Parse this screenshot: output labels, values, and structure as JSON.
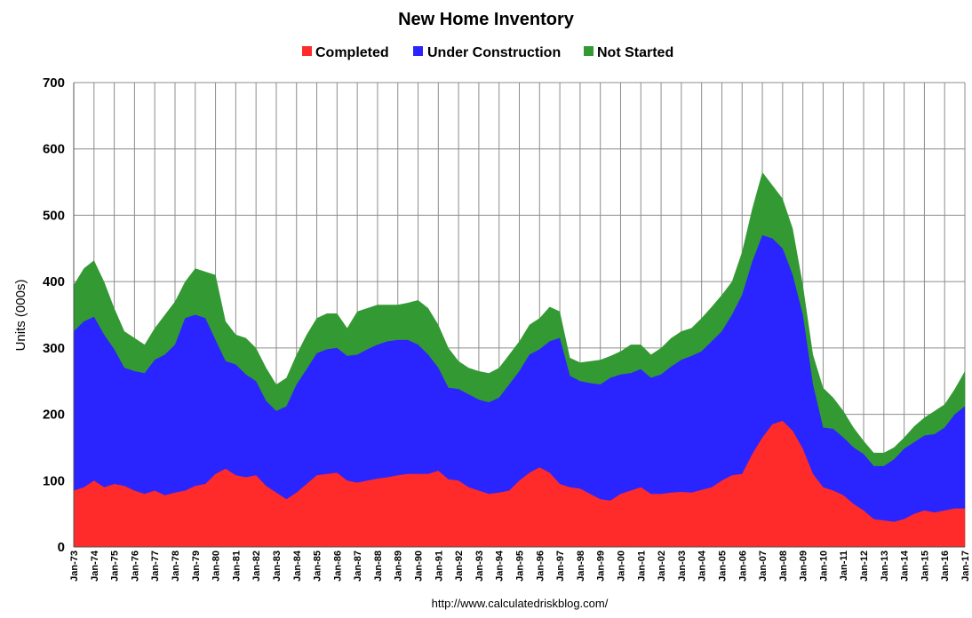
{
  "colors": {
    "completed": "#ff2a2a",
    "under_construction": "#2a24ff",
    "not_started": "#339933",
    "grid": "#8c8c8c",
    "background": "#ffffff"
  },
  "footer": {
    "source": "http://www.calculatedriskblog.com/"
  },
  "chart_data": {
    "type": "area",
    "stacked": true,
    "title": "New Home Inventory",
    "xlabel": "",
    "ylabel": "Units (000s)",
    "ylim": [
      0,
      700
    ],
    "yticks": [
      0,
      100,
      200,
      300,
      400,
      500,
      600,
      700
    ],
    "grid": true,
    "legend_position": "top-center",
    "x_tick_labels": [
      "Jan-73",
      "Jan-74",
      "Jan-75",
      "Jan-76",
      "Jan-77",
      "Jan-78",
      "Jan-79",
      "Jan-80",
      "Jan-81",
      "Jan-82",
      "Jan-83",
      "Jan-84",
      "Jan-85",
      "Jan-86",
      "Jan-87",
      "Jan-88",
      "Jan-89",
      "Jan-90",
      "Jan-91",
      "Jan-92",
      "Jan-93",
      "Jan-94",
      "Jan-95",
      "Jan-96",
      "Jan-97",
      "Jan-98",
      "Jan-99",
      "Jan-00",
      "Jan-01",
      "Jan-02",
      "Jan-03",
      "Jan-04",
      "Jan-05",
      "Jan-06",
      "Jan-07",
      "Jan-08",
      "Jan-09",
      "Jan-10",
      "Jan-11",
      "Jan-12",
      "Jan-13",
      "Jan-14",
      "Jan-15",
      "Jan-16",
      "Jan-17"
    ],
    "x": [
      "Jan-73",
      "Jul-73",
      "Jan-74",
      "Jul-74",
      "Jan-75",
      "Jul-75",
      "Jan-76",
      "Jul-76",
      "Jan-77",
      "Jul-77",
      "Jan-78",
      "Jul-78",
      "Jan-79",
      "Jul-79",
      "Jan-80",
      "Jul-80",
      "Jan-81",
      "Jul-81",
      "Jan-82",
      "Jul-82",
      "Jan-83",
      "Jul-83",
      "Jan-84",
      "Jul-84",
      "Jan-85",
      "Jul-85",
      "Jan-86",
      "Jul-86",
      "Jan-87",
      "Jul-87",
      "Jan-88",
      "Jul-88",
      "Jan-89",
      "Jul-89",
      "Jan-90",
      "Jul-90",
      "Jan-91",
      "Jul-91",
      "Jan-92",
      "Jul-92",
      "Jan-93",
      "Jul-93",
      "Jan-94",
      "Jul-94",
      "Jan-95",
      "Jul-95",
      "Jan-96",
      "Jul-96",
      "Jan-97",
      "Jul-97",
      "Jan-98",
      "Jul-98",
      "Jan-99",
      "Jul-99",
      "Jan-00",
      "Jul-00",
      "Jan-01",
      "Jul-01",
      "Jan-02",
      "Jul-02",
      "Jan-03",
      "Jul-03",
      "Jan-04",
      "Jul-04",
      "Jan-05",
      "Jul-05",
      "Jan-06",
      "Jul-06",
      "Jan-07",
      "Jul-07",
      "Jan-08",
      "Jul-08",
      "Jan-09",
      "Jul-09",
      "Jan-10",
      "Jul-10",
      "Jan-11",
      "Jul-11",
      "Jan-12",
      "Jul-12",
      "Jan-13",
      "Jul-13",
      "Jan-14",
      "Jul-14",
      "Jan-15",
      "Jul-15",
      "Jan-16",
      "Jul-16",
      "Jan-17"
    ],
    "series": [
      {
        "name": "Completed",
        "values": [
          85,
          90,
          100,
          90,
          95,
          92,
          85,
          80,
          85,
          78,
          82,
          85,
          92,
          95,
          110,
          118,
          108,
          105,
          108,
          92,
          82,
          72,
          82,
          95,
          108,
          110,
          112,
          100,
          97,
          100,
          103,
          105,
          108,
          110,
          110,
          110,
          115,
          102,
          100,
          90,
          85,
          80,
          82,
          85,
          100,
          112,
          120,
          112,
          95,
          90,
          88,
          80,
          72,
          70,
          80,
          85,
          90,
          80,
          80,
          82,
          83,
          82,
          86,
          90,
          100,
          108,
          110,
          140,
          165,
          185,
          190,
          175,
          148,
          110,
          90,
          85,
          78,
          65,
          55,
          42,
          40,
          38,
          42,
          50,
          55,
          52,
          55,
          58,
          58
        ]
      },
      {
        "name": "Under Construction",
        "values": [
          325,
          340,
          347,
          320,
          298,
          270,
          265,
          262,
          282,
          290,
          305,
          345,
          350,
          345,
          312,
          280,
          275,
          260,
          250,
          220,
          205,
          212,
          245,
          268,
          292,
          298,
          300,
          288,
          290,
          298,
          305,
          310,
          312,
          312,
          305,
          290,
          270,
          240,
          238,
          230,
          222,
          218,
          225,
          245,
          265,
          290,
          298,
          310,
          315,
          258,
          250,
          247,
          245,
          255,
          260,
          262,
          268,
          255,
          260,
          272,
          282,
          288,
          295,
          310,
          325,
          350,
          380,
          430,
          470,
          465,
          450,
          410,
          350,
          245,
          180,
          178,
          165,
          150,
          140,
          122,
          122,
          132,
          148,
          158,
          168,
          170,
          180,
          200,
          212
        ]
      },
      {
        "name": "Not Started",
        "values": [
          395,
          420,
          432,
          400,
          360,
          325,
          315,
          305,
          330,
          350,
          370,
          400,
          420,
          415,
          410,
          340,
          320,
          315,
          300,
          270,
          245,
          255,
          290,
          320,
          345,
          352,
          352,
          330,
          355,
          360,
          365,
          365,
          365,
          368,
          372,
          360,
          335,
          300,
          280,
          270,
          265,
          262,
          270,
          290,
          310,
          335,
          345,
          362,
          355,
          285,
          278,
          280,
          282,
          288,
          295,
          305,
          305,
          290,
          300,
          315,
          325,
          330,
          345,
          362,
          380,
          400,
          445,
          510,
          565,
          545,
          525,
          480,
          395,
          290,
          240,
          225,
          205,
          180,
          160,
          142,
          142,
          150,
          165,
          182,
          195,
          205,
          215,
          238,
          265
        ]
      }
    ]
  }
}
